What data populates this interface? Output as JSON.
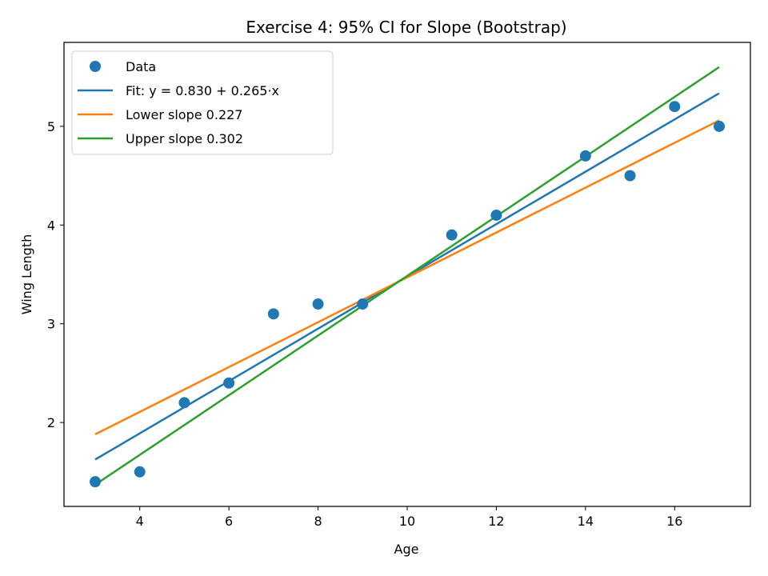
{
  "chart_data": {
    "type": "scatter",
    "title": "Exercise 4: 95% CI for Slope (Bootstrap)",
    "xlabel": "Age",
    "ylabel": "Wing Length",
    "xlim": [
      2.3,
      17.7
    ],
    "ylim": [
      1.15,
      5.85
    ],
    "xticks": [
      4,
      6,
      8,
      10,
      12,
      14,
      16
    ],
    "yticks": [
      2,
      3,
      4,
      5
    ],
    "grid": false,
    "legend_position": "top-left",
    "points": {
      "name": "Data",
      "color": "#1f77b4",
      "x": [
        3,
        4,
        5,
        6,
        7,
        8,
        9,
        11,
        12,
        14,
        15,
        16,
        17
      ],
      "y": [
        1.4,
        1.5,
        2.2,
        2.4,
        3.1,
        3.2,
        3.2,
        3.9,
        4.1,
        4.7,
        4.5,
        5.2,
        5.0
      ]
    },
    "lines": [
      {
        "name": "Fit: y = 0.830 + 0.265·x",
        "color": "#1f77b4",
        "x": [
          3,
          17
        ],
        "y": [
          1.625,
          5.335
        ]
      },
      {
        "name": "Lower slope 0.227",
        "color": "#ff7f0e",
        "x": [
          3,
          17
        ],
        "y": [
          1.88,
          5.06
        ]
      },
      {
        "name": "Upper slope 0.302",
        "color": "#2ca02c",
        "x": [
          3,
          17
        ],
        "y": [
          1.37,
          5.6
        ]
      }
    ]
  }
}
